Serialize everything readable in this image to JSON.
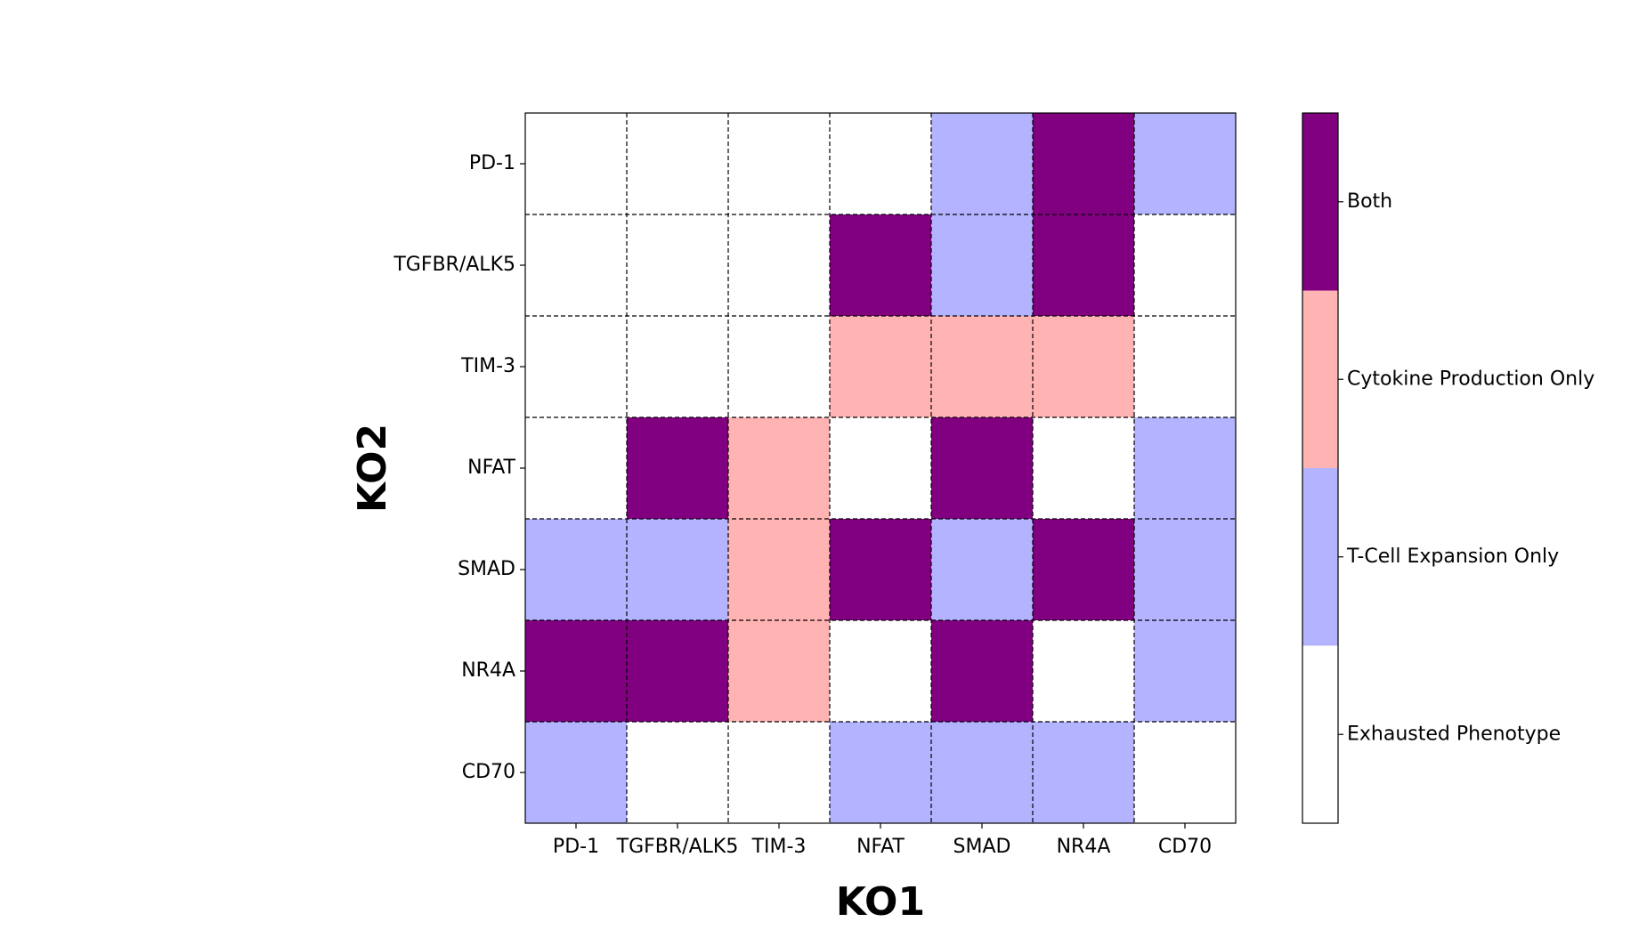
{
  "chart_data": {
    "type": "heatmap",
    "title": "",
    "xlabel": "KO1",
    "ylabel": "KO2",
    "x_categories": [
      "PD-1",
      "TGFBR/ALK5",
      "TIM-3",
      "NFAT",
      "SMAD",
      "NR4A",
      "CD70"
    ],
    "y_categories": [
      "PD-1",
      "TGFBR/ALK5",
      "TIM-3",
      "NFAT",
      "SMAD",
      "NR4A",
      "CD70"
    ],
    "values": [
      [
        0,
        0,
        0,
        0,
        1,
        3,
        1
      ],
      [
        0,
        0,
        0,
        3,
        1,
        3,
        0
      ],
      [
        0,
        0,
        0,
        2,
        2,
        2,
        0
      ],
      [
        0,
        3,
        2,
        0,
        3,
        0,
        1
      ],
      [
        1,
        1,
        2,
        3,
        1,
        3,
        1
      ],
      [
        3,
        3,
        2,
        0,
        3,
        0,
        1
      ],
      [
        1,
        0,
        0,
        1,
        1,
        1,
        0
      ]
    ],
    "value_scale": [
      {
        "value": 0,
        "label": "Exhausted Phenotype",
        "color": "#ffffff"
      },
      {
        "value": 1,
        "label": "T-Cell Expansion Only",
        "color": "#b3b3ff"
      },
      {
        "value": 2,
        "label": "Cytokine Production Only",
        "color": "#ffb3b3"
      },
      {
        "value": 3,
        "label": "Both",
        "color": "#800080"
      }
    ],
    "grid": true,
    "grid_style": "dashed",
    "colorbar": "right"
  }
}
